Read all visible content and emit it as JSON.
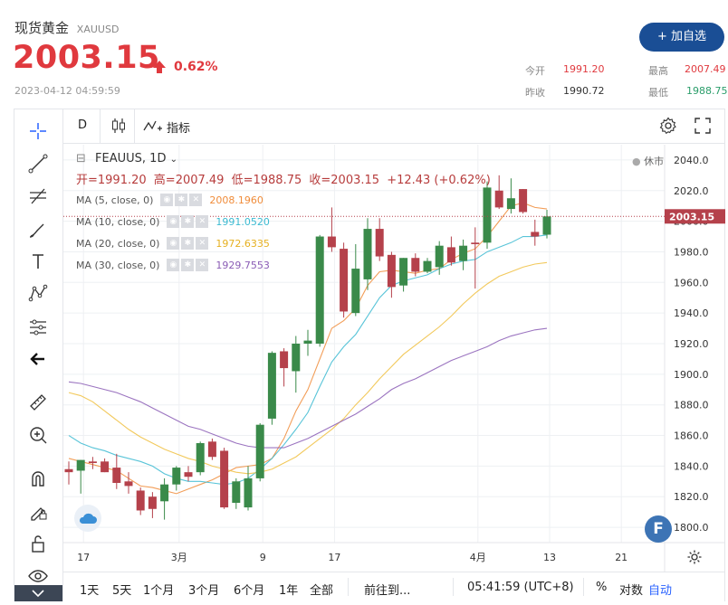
{
  "header": {
    "name": "现货黄金",
    "symbol": "XAUUSD",
    "price": "2003.15",
    "change_pct": "0.62%",
    "timestamp": "2023-04-12 04:59:59",
    "add_button": "+ 加自选",
    "stats": {
      "open_label": "今开",
      "open": "1991.20",
      "high_label": "最高",
      "high": "2007.49",
      "prev_label": "昨收",
      "prev": "1990.72",
      "low_label": "最低",
      "low": "1988.75"
    },
    "colors": {
      "up": "#e0393e",
      "button": "#1a4e95"
    }
  },
  "toolbar": {
    "interval": "D",
    "indicators": "指标"
  },
  "legend": {
    "title": "FEAUUS, 1D",
    "status": "休市",
    "ohlc": {
      "open": "开=1991.20",
      "high": "高=2007.49",
      "low": "低=1988.75",
      "close": "收=2003.15",
      "change": "+12.43 (+0.62%)"
    },
    "ma": [
      {
        "label": "MA (5, close, 0)",
        "value": "2008.1960",
        "color": "#f08c3a"
      },
      {
        "label": "MA (10, close, 0)",
        "value": "1991.0520",
        "color": "#3bbad1"
      },
      {
        "label": "MA (20, close, 0)",
        "value": "1972.6335",
        "color": "#f0c040"
      },
      {
        "label": "MA (30, close, 0)",
        "value": "1929.7553",
        "color": "#8a5cb5"
      }
    ]
  },
  "bottom_bar": {
    "ranges": [
      "1天",
      "5天",
      "1个月",
      "3个月",
      "6个月",
      "1年",
      "全部"
    ],
    "goto": "前往到...",
    "clock": "05:41:59 (UTC+8)",
    "percent": "%",
    "log": "对数",
    "auto": "自动"
  },
  "chart_data": {
    "type": "candlestick",
    "ylim": [
      1790,
      2050
    ],
    "y_ticks": [
      1800,
      1820,
      1840,
      1860,
      1880,
      1900,
      1920,
      1940,
      1960,
      1980,
      2000,
      2020,
      2040
    ],
    "x_ticks": [
      "17",
      "3月",
      "9",
      "17",
      "4月",
      "13",
      "21"
    ],
    "last_price_label": "2003.15",
    "candles": [
      {
        "o": 1838,
        "h": 1843,
        "l": 1828,
        "c": 1836
      },
      {
        "o": 1837,
        "h": 1844,
        "l": 1822,
        "c": 1844
      },
      {
        "o": 1843,
        "h": 1846,
        "l": 1838,
        "c": 1842
      },
      {
        "o": 1843,
        "h": 1845,
        "l": 1836,
        "c": 1836
      },
      {
        "o": 1839,
        "h": 1848,
        "l": 1825,
        "c": 1829
      },
      {
        "o": 1830,
        "h": 1836,
        "l": 1822,
        "c": 1827
      },
      {
        "o": 1824,
        "h": 1826,
        "l": 1808,
        "c": 1811
      },
      {
        "o": 1820,
        "h": 1823,
        "l": 1806,
        "c": 1812
      },
      {
        "o": 1817,
        "h": 1832,
        "l": 1805,
        "c": 1828
      },
      {
        "o": 1828,
        "h": 1840,
        "l": 1824,
        "c": 1839
      },
      {
        "o": 1836,
        "h": 1840,
        "l": 1830,
        "c": 1833
      },
      {
        "o": 1836,
        "h": 1856,
        "l": 1834,
        "c": 1855
      },
      {
        "o": 1856,
        "h": 1858,
        "l": 1844,
        "c": 1846
      },
      {
        "o": 1850,
        "h": 1852,
        "l": 1812,
        "c": 1813
      },
      {
        "o": 1816,
        "h": 1832,
        "l": 1812,
        "c": 1830
      },
      {
        "o": 1813,
        "h": 1840,
        "l": 1811,
        "c": 1832
      },
      {
        "o": 1832,
        "h": 1868,
        "l": 1830,
        "c": 1867
      },
      {
        "o": 1871,
        "h": 1915,
        "l": 1867,
        "c": 1914
      },
      {
        "o": 1915,
        "h": 1917,
        "l": 1892,
        "c": 1904
      },
      {
        "o": 1902,
        "h": 1925,
        "l": 1888,
        "c": 1920
      },
      {
        "o": 1920,
        "h": 1929,
        "l": 1912,
        "c": 1922
      },
      {
        "o": 1920,
        "h": 1991,
        "l": 1918,
        "c": 1990
      },
      {
        "o": 1990,
        "h": 2009,
        "l": 1980,
        "c": 1983
      },
      {
        "o": 1982,
        "h": 1986,
        "l": 1937,
        "c": 1941
      },
      {
        "o": 1940,
        "h": 1985,
        "l": 1938,
        "c": 1969
      },
      {
        "o": 1962,
        "h": 2002,
        "l": 1955,
        "c": 1995
      },
      {
        "o": 1995,
        "h": 2002,
        "l": 1974,
        "c": 1977
      },
      {
        "o": 1978,
        "h": 1980,
        "l": 1950,
        "c": 1957
      },
      {
        "o": 1958,
        "h": 1976,
        "l": 1954,
        "c": 1976
      },
      {
        "o": 1976,
        "h": 1979,
        "l": 1964,
        "c": 1967
      },
      {
        "o": 1967,
        "h": 1976,
        "l": 1966,
        "c": 1974
      },
      {
        "o": 1970,
        "h": 1987,
        "l": 1965,
        "c": 1984
      },
      {
        "o": 1983,
        "h": 1990,
        "l": 1971,
        "c": 1973
      },
      {
        "o": 1974,
        "h": 1988,
        "l": 1968,
        "c": 1984
      },
      {
        "o": 1986,
        "h": 1996,
        "l": 1956,
        "c": 1985
      },
      {
        "o": 1986,
        "h": 2026,
        "l": 1982,
        "c": 2022
      },
      {
        "o": 2020,
        "h": 2030,
        "l": 2008,
        "c": 2009
      },
      {
        "o": 2008,
        "h": 2028,
        "l": 2005,
        "c": 2015
      },
      {
        "o": 2021,
        "h": 2021,
        "l": 2005,
        "c": 2006
      },
      {
        "o": 1993,
        "h": 2001,
        "l": 1984,
        "c": 1990
      },
      {
        "o": 1991.2,
        "h": 2007.49,
        "l": 1988.75,
        "c": 2003.15
      }
    ],
    "ma_series": [
      {
        "name": "MA (5, close, 0)",
        "color": "#f08c3a",
        "values": [
          1845,
          1843,
          1841,
          1839,
          1837,
          1832,
          1827,
          1826,
          1824,
          1822,
          1825,
          1828,
          1831,
          1835,
          1839,
          1840,
          1841,
          1845,
          1858,
          1876,
          1890,
          1910,
          1930,
          1935,
          1943,
          1958,
          1967,
          1968,
          1967,
          1966,
          1968,
          1969,
          1975,
          1979,
          1982,
          1990,
          2000,
          2010,
          2012,
          2009,
          2008
        ]
      },
      {
        "name": "MA (10, close, 0)",
        "color": "#3bbad1",
        "values": [
          1860,
          1855,
          1852,
          1850,
          1847,
          1845,
          1843,
          1840,
          1835,
          1832,
          1830,
          1830,
          1829,
          1828,
          1829,
          1832,
          1838,
          1845,
          1854,
          1864,
          1875,
          1892,
          1908,
          1918,
          1926,
          1938,
          1950,
          1958,
          1961,
          1963,
          1965,
          1969,
          1972,
          1974,
          1975,
          1980,
          1983,
          1986,
          1990,
          1990,
          1991
        ]
      },
      {
        "name": "MA (20, close, 0)",
        "color": "#f0c040",
        "values": [
          1888,
          1886,
          1882,
          1876,
          1870,
          1864,
          1859,
          1855,
          1851,
          1848,
          1845,
          1843,
          1840,
          1838,
          1836,
          1835,
          1836,
          1838,
          1842,
          1846,
          1852,
          1858,
          1864,
          1871,
          1880,
          1888,
          1897,
          1905,
          1913,
          1919,
          1925,
          1931,
          1938,
          1946,
          1953,
          1959,
          1964,
          1967,
          1970,
          1972,
          1973
        ]
      },
      {
        "name": "MA (30, close, 0)",
        "color": "#8a5cb5",
        "values": [
          1895,
          1894,
          1892,
          1890,
          1888,
          1885,
          1882,
          1878,
          1874,
          1870,
          1866,
          1864,
          1861,
          1858,
          1855,
          1853,
          1852,
          1852,
          1852,
          1855,
          1858,
          1862,
          1866,
          1870,
          1874,
          1879,
          1884,
          1890,
          1894,
          1897,
          1901,
          1905,
          1909,
          1912,
          1915,
          1918,
          1922,
          1925,
          1927,
          1929,
          1930
        ]
      }
    ],
    "colors": {
      "up": "#3a8a4a",
      "down": "#b5414b",
      "grid": "#eef0f3"
    }
  }
}
